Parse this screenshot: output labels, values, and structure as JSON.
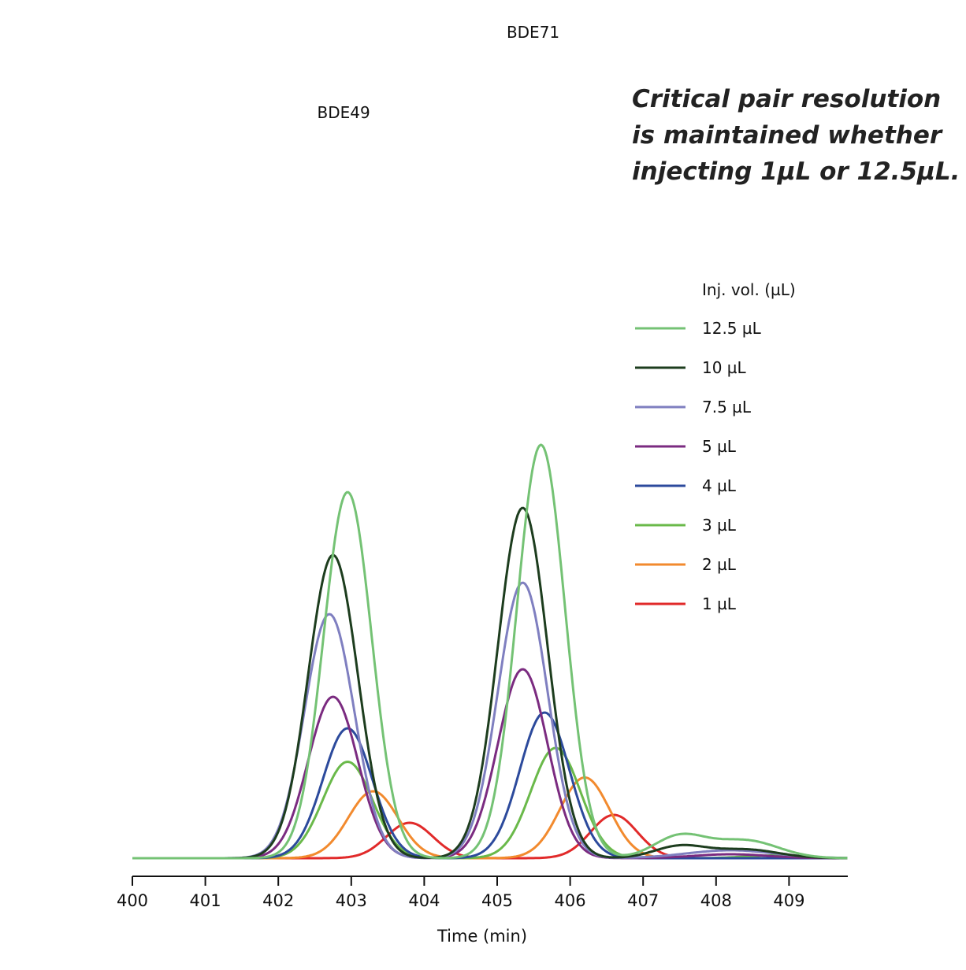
{
  "chart_data": {
    "type": "line",
    "xlabel": "Time (min)",
    "xlim": [
      400,
      409.8
    ],
    "ticks": [
      "400",
      "401",
      "402",
      "403",
      "404",
      "405",
      "406",
      "407",
      "408",
      "409"
    ],
    "grid": false,
    "legend_title": "Inj. vol. (µL)",
    "legend_position": "right",
    "annotations": {
      "peak1": {
        "label": "BDE49",
        "x": 402.95
      },
      "peak2": {
        "label": "BDE71",
        "x": 405.6
      },
      "note": [
        "Critical pair resolution",
        "is maintained whether",
        "injecting 1µL or 12.5µL."
      ]
    },
    "series": [
      {
        "name": "12.5 µL",
        "color": "#74c274",
        "peaks": [
          {
            "t": 402.95,
            "h": 9.3,
            "w": 0.33
          },
          {
            "t": 405.6,
            "h": 10.5,
            "w": 0.33
          }
        ],
        "tail": [
          {
            "t": 407.5,
            "h": 0.55,
            "w": 0.35
          },
          {
            "t": 408.4,
            "h": 0.45,
            "w": 0.45
          }
        ]
      },
      {
        "name": "10 µL",
        "color": "#1d3d1e",
        "peaks": [
          {
            "t": 402.75,
            "h": 7.7,
            "w": 0.34
          },
          {
            "t": 405.35,
            "h": 8.9,
            "w": 0.34
          }
        ],
        "tail": [
          {
            "t": 407.5,
            "h": 0.3,
            "w": 0.35
          },
          {
            "t": 408.4,
            "h": 0.22,
            "w": 0.45
          }
        ]
      },
      {
        "name": "7.5 µL",
        "color": "#7f7fc0",
        "peaks": [
          {
            "t": 402.7,
            "h": 6.2,
            "w": 0.34
          },
          {
            "t": 405.35,
            "h": 7.0,
            "w": 0.34
          }
        ],
        "tail": [
          {
            "t": 408.2,
            "h": 0.2,
            "w": 0.6
          }
        ]
      },
      {
        "name": "5 µL",
        "color": "#7b2b80",
        "peaks": [
          {
            "t": 402.75,
            "h": 4.1,
            "w": 0.34
          },
          {
            "t": 405.35,
            "h": 4.8,
            "w": 0.34
          }
        ],
        "tail": [
          {
            "t": 408.2,
            "h": 0.1,
            "w": 0.5
          }
        ]
      },
      {
        "name": "4 µL",
        "color": "#2c4a9c",
        "peaks": [
          {
            "t": 402.95,
            "h": 3.3,
            "w": 0.34
          },
          {
            "t": 405.65,
            "h": 3.7,
            "w": 0.34
          }
        ],
        "tail": []
      },
      {
        "name": "3 µL",
        "color": "#6ab94a",
        "peaks": [
          {
            "t": 402.95,
            "h": 2.45,
            "w": 0.34
          },
          {
            "t": 405.8,
            "h": 2.8,
            "w": 0.34
          }
        ],
        "tail": [
          {
            "t": 408.8,
            "h": 0.07,
            "w": 0.4
          }
        ]
      },
      {
        "name": "2 µL",
        "color": "#f28a2e",
        "peaks": [
          {
            "t": 403.3,
            "h": 1.7,
            "w": 0.34
          },
          {
            "t": 406.2,
            "h": 2.05,
            "w": 0.34
          }
        ],
        "tail": []
      },
      {
        "name": "1 µL",
        "color": "#e12a2a",
        "peaks": [
          {
            "t": 403.8,
            "h": 0.9,
            "w": 0.32
          },
          {
            "t": 406.6,
            "h": 1.1,
            "w": 0.32
          }
        ],
        "tail": []
      }
    ]
  }
}
